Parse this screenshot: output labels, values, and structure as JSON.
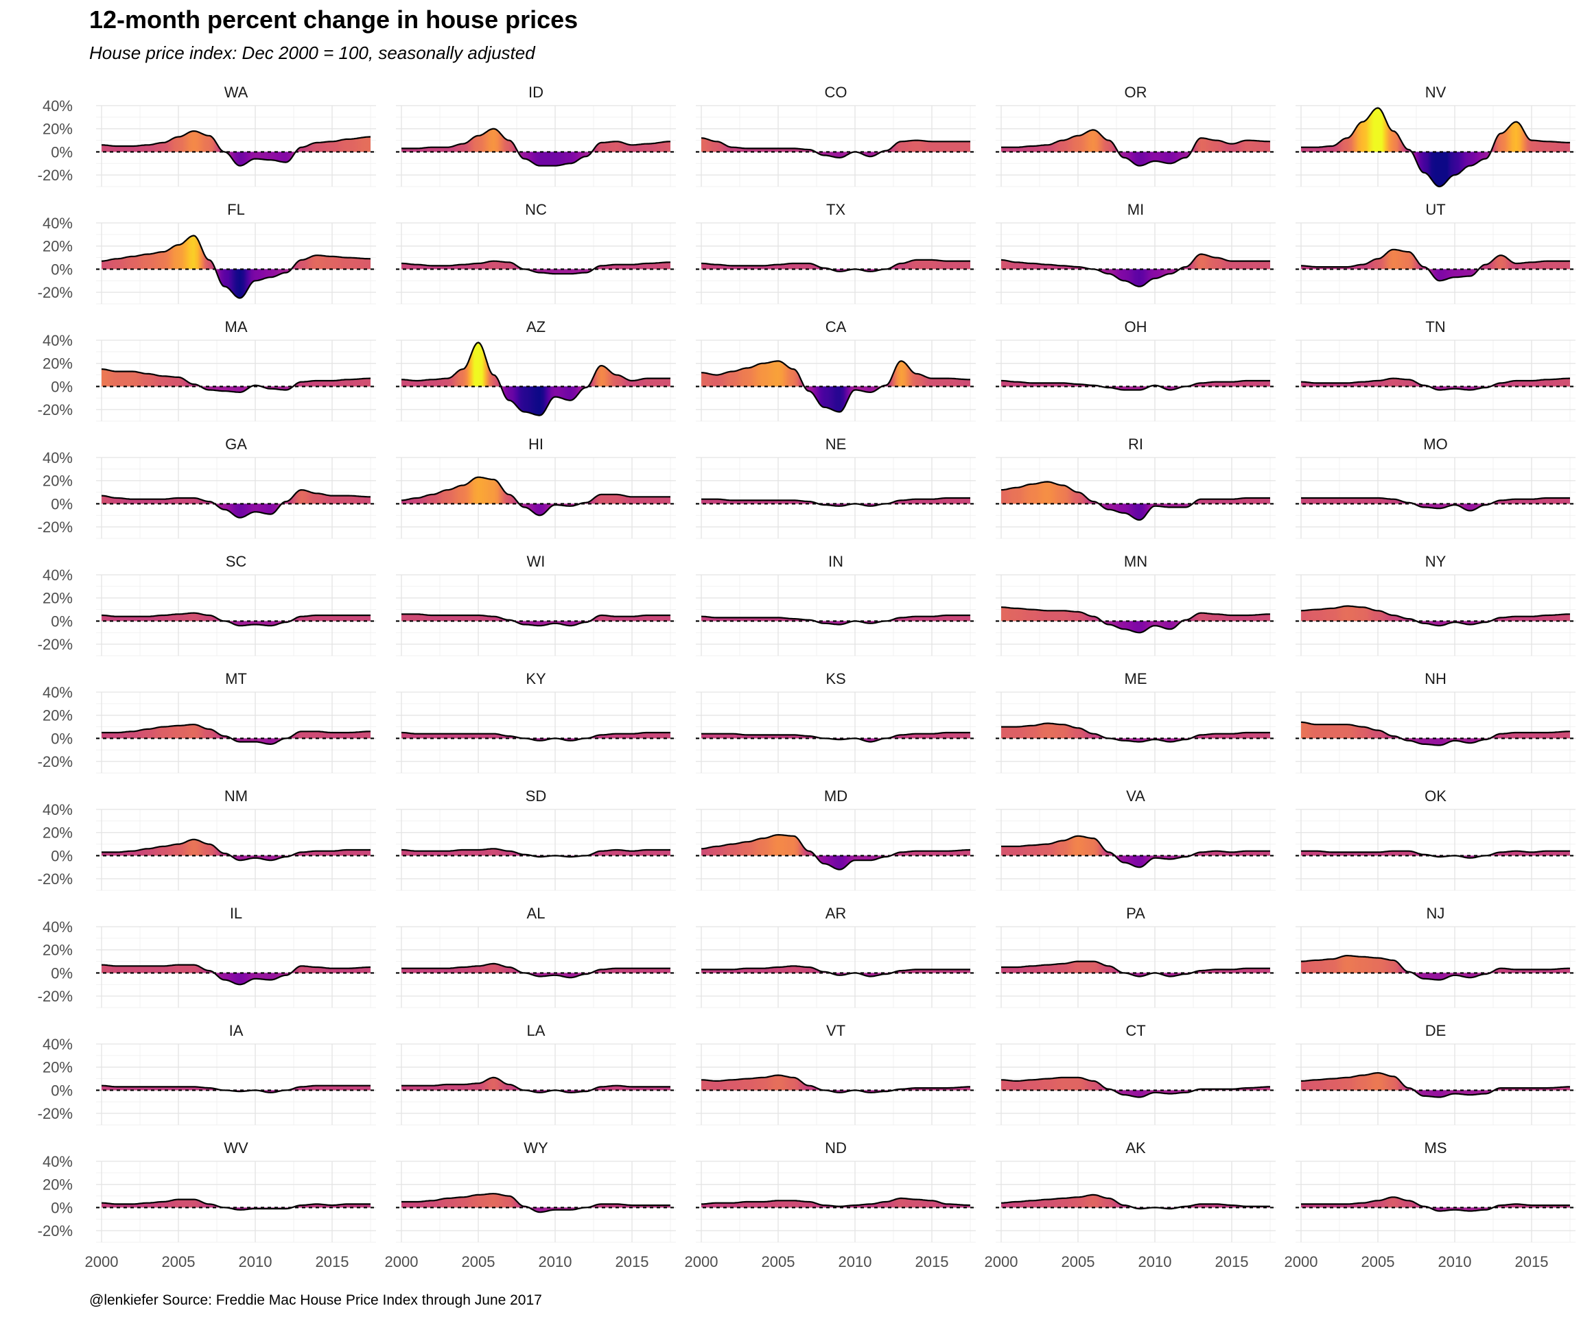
{
  "chart_data": {
    "type": "area",
    "title": "12-month percent change in house prices",
    "subtitle": "House price index: Dec 2000 = 100, seasonally adjusted",
    "caption": "@lenkiefer Source: Freddie Mac House Price Index through June 2017",
    "facet_layout": "5 columns x 11 rows",
    "xlim": [
      2000,
      2017.5
    ],
    "ylim": [
      -30,
      40
    ],
    "x_ticks": [
      2000,
      2005,
      2010,
      2015
    ],
    "y_ticks": [
      -20,
      0,
      20,
      40
    ],
    "y_tick_labels": [
      "-20%",
      "0%",
      "20%",
      "40%"
    ],
    "grid": true,
    "reference_line": {
      "y": 0,
      "style": "dashed"
    },
    "color_scale": {
      "name": "plasma",
      "low": -25,
      "high": 35,
      "stops": [
        "#0d0887",
        "#5302a3",
        "#8b0aa5",
        "#b83289",
        "#db5c68",
        "#f48849",
        "#febc2a",
        "#f0f921"
      ]
    },
    "x_years": [
      2000,
      2001,
      2002,
      2003,
      2004,
      2005,
      2006,
      2007,
      2008,
      2009,
      2010,
      2011,
      2012,
      2013,
      2014,
      2015,
      2016,
      2017.5
    ],
    "series": [
      {
        "name": "WA",
        "values": [
          6,
          5,
          5,
          6,
          8,
          13,
          18,
          14,
          0,
          -12,
          -6,
          -7,
          -9,
          4,
          8,
          9,
          11,
          13
        ]
      },
      {
        "name": "ID",
        "values": [
          3,
          3,
          4,
          4,
          7,
          14,
          20,
          10,
          -6,
          -12,
          -12,
          -10,
          -4,
          8,
          9,
          6,
          7,
          9
        ]
      },
      {
        "name": "CO",
        "values": [
          12,
          9,
          4,
          3,
          3,
          3,
          3,
          2,
          -3,
          -5,
          0,
          -4,
          1,
          9,
          10,
          9,
          9,
          9
        ]
      },
      {
        "name": "OR",
        "values": [
          4,
          4,
          5,
          6,
          10,
          14,
          19,
          10,
          -5,
          -12,
          -8,
          -10,
          -5,
          12,
          10,
          7,
          10,
          9
        ]
      },
      {
        "name": "NV",
        "values": [
          4,
          4,
          5,
          12,
          26,
          38,
          18,
          2,
          -18,
          -30,
          -20,
          -12,
          -6,
          16,
          26,
          10,
          9,
          8
        ]
      },
      {
        "name": "FL",
        "values": [
          7,
          9,
          11,
          13,
          15,
          21,
          29,
          8,
          -15,
          -25,
          -10,
          -7,
          -3,
          8,
          12,
          11,
          10,
          9
        ]
      },
      {
        "name": "NC",
        "values": [
          5,
          4,
          3,
          3,
          4,
          5,
          7,
          6,
          0,
          -3,
          -4,
          -4,
          -3,
          3,
          4,
          4,
          5,
          6
        ]
      },
      {
        "name": "TX",
        "values": [
          5,
          4,
          3,
          3,
          3,
          4,
          5,
          5,
          1,
          -2,
          0,
          -2,
          0,
          5,
          8,
          8,
          7,
          7
        ]
      },
      {
        "name": "MI",
        "values": [
          8,
          6,
          5,
          4,
          3,
          2,
          0,
          -4,
          -10,
          -15,
          -8,
          -4,
          2,
          13,
          10,
          7,
          7,
          7
        ]
      },
      {
        "name": "UT",
        "values": [
          3,
          2,
          2,
          2,
          4,
          9,
          17,
          15,
          2,
          -10,
          -7,
          -6,
          4,
          12,
          5,
          6,
          7,
          7
        ]
      },
      {
        "name": "MA",
        "values": [
          15,
          13,
          13,
          11,
          9,
          8,
          2,
          -3,
          -4,
          -5,
          1,
          -2,
          -3,
          4,
          5,
          5,
          6,
          7
        ]
      },
      {
        "name": "AZ",
        "values": [
          6,
          5,
          6,
          7,
          15,
          38,
          10,
          -12,
          -22,
          -25,
          -9,
          -12,
          -1,
          18,
          10,
          5,
          7,
          7
        ]
      },
      {
        "name": "CA",
        "values": [
          12,
          10,
          13,
          16,
          20,
          22,
          15,
          -4,
          -18,
          -22,
          -3,
          -5,
          1,
          22,
          11,
          7,
          7,
          6
        ]
      },
      {
        "name": "OH",
        "values": [
          5,
          4,
          3,
          3,
          3,
          2,
          1,
          -1,
          -3,
          -3,
          1,
          -3,
          0,
          3,
          4,
          4,
          5,
          5
        ]
      },
      {
        "name": "TN",
        "values": [
          4,
          3,
          3,
          3,
          4,
          5,
          7,
          6,
          1,
          -3,
          -2,
          -3,
          -1,
          3,
          5,
          5,
          6,
          7
        ]
      },
      {
        "name": "GA",
        "values": [
          7,
          5,
          4,
          4,
          4,
          5,
          5,
          2,
          -5,
          -12,
          -7,
          -9,
          2,
          12,
          9,
          7,
          7,
          6
        ]
      },
      {
        "name": "HI",
        "values": [
          3,
          5,
          8,
          12,
          16,
          23,
          21,
          8,
          -3,
          -10,
          -1,
          -2,
          1,
          8,
          8,
          6,
          6,
          6
        ]
      },
      {
        "name": "NE",
        "values": [
          4,
          4,
          3,
          3,
          3,
          3,
          3,
          2,
          -1,
          -2,
          0,
          -2,
          0,
          3,
          4,
          4,
          5,
          5
        ]
      },
      {
        "name": "RI",
        "values": [
          12,
          14,
          17,
          19,
          16,
          10,
          2,
          -5,
          -8,
          -14,
          -2,
          -3,
          -3,
          4,
          4,
          4,
          5,
          5
        ]
      },
      {
        "name": "MO",
        "values": [
          5,
          5,
          5,
          5,
          5,
          5,
          4,
          1,
          -3,
          -4,
          -1,
          -6,
          -1,
          3,
          4,
          4,
          5,
          5
        ]
      },
      {
        "name": "SC",
        "values": [
          5,
          4,
          4,
          4,
          5,
          6,
          7,
          5,
          0,
          -4,
          -3,
          -4,
          -1,
          4,
          5,
          5,
          5,
          5
        ]
      },
      {
        "name": "WI",
        "values": [
          6,
          6,
          5,
          5,
          5,
          5,
          4,
          1,
          -3,
          -4,
          -2,
          -4,
          -1,
          5,
          4,
          4,
          5,
          5
        ]
      },
      {
        "name": "IN",
        "values": [
          4,
          3,
          3,
          3,
          3,
          3,
          2,
          1,
          -2,
          -3,
          0,
          -2,
          0,
          3,
          4,
          4,
          5,
          5
        ]
      },
      {
        "name": "MN",
        "values": [
          12,
          11,
          10,
          9,
          9,
          8,
          4,
          -3,
          -7,
          -10,
          -4,
          -7,
          1,
          7,
          6,
          5,
          5,
          6
        ]
      },
      {
        "name": "NY",
        "values": [
          9,
          10,
          11,
          13,
          12,
          9,
          5,
          2,
          -2,
          -4,
          -1,
          -3,
          -1,
          3,
          4,
          4,
          5,
          6
        ]
      },
      {
        "name": "MT",
        "values": [
          5,
          5,
          6,
          8,
          10,
          11,
          12,
          8,
          2,
          -3,
          -3,
          -5,
          0,
          6,
          6,
          5,
          5,
          6
        ]
      },
      {
        "name": "KY",
        "values": [
          5,
          4,
          4,
          4,
          4,
          4,
          4,
          2,
          0,
          -2,
          0,
          -2,
          0,
          3,
          4,
          4,
          5,
          5
        ]
      },
      {
        "name": "KS",
        "values": [
          4,
          4,
          4,
          3,
          3,
          3,
          3,
          2,
          0,
          -1,
          0,
          -3,
          0,
          3,
          4,
          4,
          5,
          5
        ]
      },
      {
        "name": "ME",
        "values": [
          10,
          10,
          11,
          13,
          12,
          9,
          4,
          0,
          -2,
          -3,
          -1,
          -3,
          -1,
          3,
          4,
          4,
          5,
          5
        ]
      },
      {
        "name": "NH",
        "values": [
          14,
          12,
          12,
          12,
          10,
          7,
          2,
          -2,
          -5,
          -6,
          -2,
          -4,
          -1,
          4,
          5,
          5,
          5,
          6
        ]
      },
      {
        "name": "NM",
        "values": [
          3,
          3,
          4,
          6,
          8,
          10,
          14,
          10,
          2,
          -4,
          -2,
          -4,
          -1,
          3,
          4,
          4,
          5,
          5
        ]
      },
      {
        "name": "SD",
        "values": [
          5,
          4,
          4,
          4,
          5,
          5,
          6,
          4,
          1,
          -1,
          0,
          -1,
          0,
          4,
          5,
          4,
          5,
          5
        ]
      },
      {
        "name": "MD",
        "values": [
          6,
          8,
          10,
          12,
          15,
          18,
          17,
          4,
          -7,
          -12,
          -4,
          -4,
          -1,
          3,
          4,
          4,
          4,
          5
        ]
      },
      {
        "name": "VA",
        "values": [
          8,
          8,
          9,
          10,
          13,
          17,
          15,
          3,
          -6,
          -10,
          -2,
          -3,
          -1,
          3,
          4,
          3,
          4,
          4
        ]
      },
      {
        "name": "OK",
        "values": [
          4,
          4,
          3,
          3,
          3,
          3,
          4,
          4,
          1,
          -1,
          0,
          -2,
          0,
          3,
          4,
          3,
          4,
          4
        ]
      },
      {
        "name": "IL",
        "values": [
          7,
          6,
          6,
          6,
          6,
          7,
          7,
          2,
          -6,
          -10,
          -5,
          -6,
          -2,
          6,
          5,
          4,
          4,
          5
        ]
      },
      {
        "name": "AL",
        "values": [
          4,
          4,
          4,
          4,
          5,
          6,
          8,
          5,
          0,
          -3,
          -2,
          -4,
          -1,
          3,
          4,
          4,
          4,
          4
        ]
      },
      {
        "name": "AR",
        "values": [
          3,
          3,
          3,
          4,
          4,
          5,
          6,
          5,
          1,
          -2,
          0,
          -3,
          -1,
          2,
          3,
          3,
          3,
          3
        ]
      },
      {
        "name": "PA",
        "values": [
          5,
          5,
          6,
          7,
          8,
          10,
          10,
          6,
          0,
          -3,
          0,
          -3,
          -1,
          2,
          3,
          3,
          4,
          4
        ]
      },
      {
        "name": "NJ",
        "values": [
          10,
          11,
          12,
          15,
          14,
          13,
          11,
          1,
          -5,
          -6,
          -2,
          -4,
          -1,
          4,
          3,
          3,
          3,
          4
        ]
      },
      {
        "name": "IA",
        "values": [
          4,
          3,
          3,
          3,
          3,
          3,
          3,
          2,
          0,
          -1,
          0,
          -2,
          0,
          3,
          4,
          4,
          4,
          4
        ]
      },
      {
        "name": "LA",
        "values": [
          4,
          4,
          4,
          5,
          5,
          6,
          11,
          5,
          0,
          -2,
          0,
          -2,
          -1,
          3,
          4,
          3,
          3,
          3
        ]
      },
      {
        "name": "VT",
        "values": [
          9,
          8,
          9,
          10,
          11,
          13,
          11,
          4,
          0,
          -2,
          0,
          -2,
          -1,
          1,
          2,
          2,
          2,
          3
        ]
      },
      {
        "name": "CT",
        "values": [
          9,
          8,
          9,
          10,
          11,
          11,
          8,
          1,
          -4,
          -6,
          -2,
          -3,
          -2,
          1,
          1,
          1,
          2,
          3
        ]
      },
      {
        "name": "DE",
        "values": [
          8,
          9,
          10,
          11,
          13,
          15,
          12,
          2,
          -5,
          -6,
          -3,
          -4,
          -3,
          2,
          2,
          2,
          2,
          3
        ]
      },
      {
        "name": "WV",
        "values": [
          4,
          3,
          3,
          4,
          5,
          7,
          7,
          3,
          0,
          -2,
          -1,
          -1,
          -1,
          2,
          3,
          2,
          3,
          3
        ]
      },
      {
        "name": "WY",
        "values": [
          5,
          5,
          6,
          8,
          9,
          11,
          12,
          10,
          1,
          -4,
          -2,
          -2,
          0,
          3,
          3,
          2,
          2,
          2
        ]
      },
      {
        "name": "ND",
        "values": [
          3,
          4,
          4,
          5,
          5,
          6,
          6,
          5,
          2,
          1,
          2,
          3,
          5,
          8,
          7,
          6,
          3,
          2
        ]
      },
      {
        "name": "AK",
        "values": [
          4,
          5,
          6,
          7,
          8,
          9,
          11,
          8,
          2,
          -1,
          0,
          -1,
          1,
          3,
          3,
          2,
          1,
          1
        ]
      },
      {
        "name": "MS",
        "values": [
          3,
          3,
          3,
          3,
          4,
          6,
          9,
          6,
          1,
          -3,
          -2,
          -3,
          -2,
          2,
          3,
          2,
          2,
          2
        ]
      }
    ]
  }
}
